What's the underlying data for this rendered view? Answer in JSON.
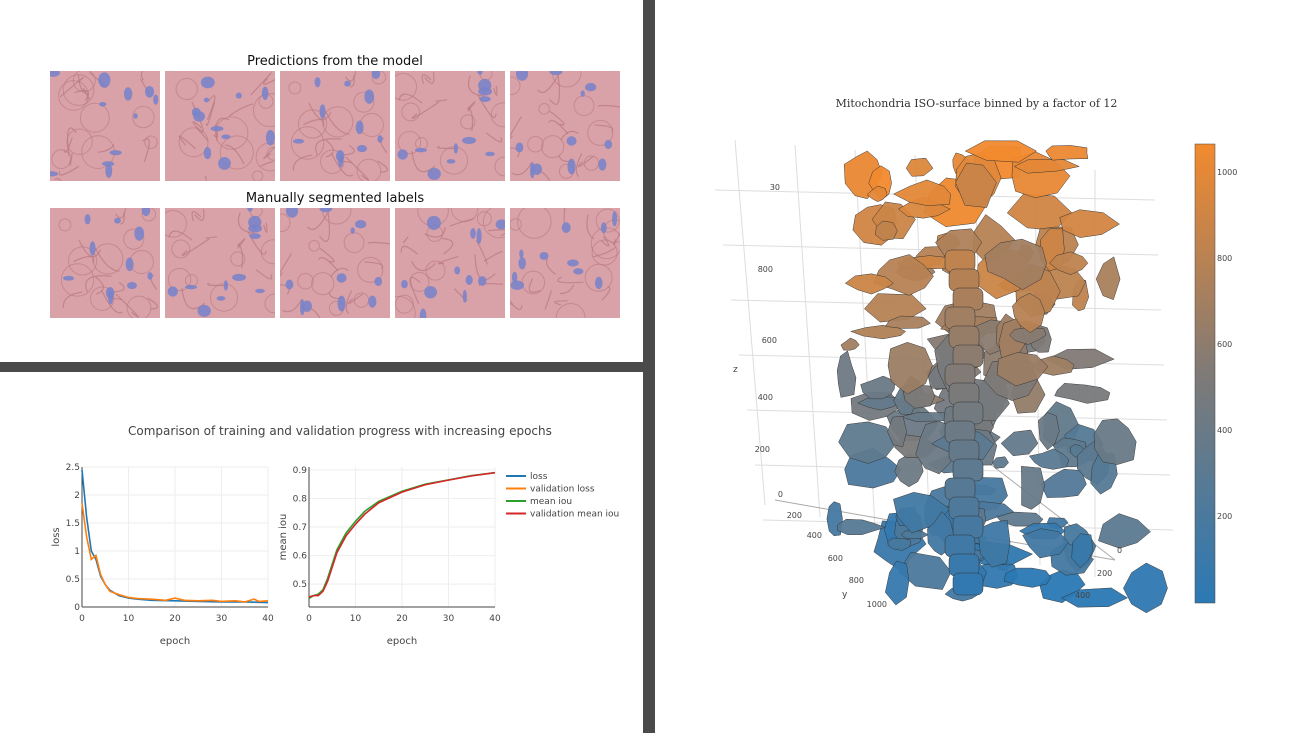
{
  "segmentation": {
    "pred_title": "Predictions from the model",
    "label_title": "Manually segmented labels",
    "tiles_per_row": 5,
    "colors": {
      "membrane": "#d9a2a8",
      "membrane_dark": "#b7787f",
      "mitochondria": "#7a83c8"
    }
  },
  "training": {
    "title": "Comparison of training and validation progress with increasing epochs",
    "loss_plot": {
      "ylabel": "loss",
      "xlabel": "epoch",
      "xticks": [
        "0",
        "10",
        "20",
        "30",
        "40"
      ],
      "yticks": [
        "0",
        "0.5",
        "1",
        "1.5",
        "2",
        "2.5"
      ]
    },
    "iou_plot": {
      "ylabel": "mean iou",
      "xlabel": "epoch",
      "xticks": [
        "0",
        "10",
        "20",
        "30",
        "40"
      ],
      "yticks": [
        "0.5",
        "0.6",
        "0.7",
        "0.8",
        "0.9"
      ]
    },
    "legend": [
      {
        "label": "loss",
        "color": "#1f77b4"
      },
      {
        "label": "validation loss",
        "color": "#ff7f0e"
      },
      {
        "label": "mean iou",
        "color": "#2ca02c"
      },
      {
        "label": "validation mean iou",
        "color": "#d62728"
      }
    ]
  },
  "chart_data": [
    {
      "type": "line",
      "xlabel": "epoch",
      "ylabel": "loss",
      "xlim": [
        0,
        40
      ],
      "ylim": [
        0,
        2.5
      ],
      "series": [
        {
          "name": "loss",
          "color": "#1f77b4",
          "x": [
            0,
            1,
            2,
            3,
            4,
            5,
            6,
            8,
            10,
            12,
            15,
            20,
            25,
            30,
            35,
            40
          ],
          "y": [
            2.45,
            1.6,
            1.0,
            0.85,
            0.55,
            0.4,
            0.3,
            0.2,
            0.16,
            0.14,
            0.12,
            0.11,
            0.1,
            0.09,
            0.09,
            0.08
          ]
        },
        {
          "name": "validation loss",
          "color": "#ff7f0e",
          "x": [
            0,
            1,
            2,
            3,
            4,
            5,
            6,
            8,
            10,
            12,
            15,
            18,
            20,
            22,
            25,
            28,
            30,
            33,
            35,
            37,
            38,
            40
          ],
          "y": [
            1.85,
            1.25,
            0.85,
            0.92,
            0.58,
            0.4,
            0.28,
            0.22,
            0.17,
            0.15,
            0.14,
            0.12,
            0.16,
            0.12,
            0.11,
            0.12,
            0.1,
            0.11,
            0.09,
            0.14,
            0.1,
            0.11
          ]
        }
      ]
    },
    {
      "type": "line",
      "xlabel": "epoch",
      "ylabel": "mean iou",
      "xlim": [
        0,
        40
      ],
      "ylim": [
        0.42,
        0.91
      ],
      "series": [
        {
          "name": "mean iou",
          "color": "#2ca02c",
          "x": [
            0,
            1,
            2,
            3,
            4,
            5,
            6,
            8,
            10,
            12,
            15,
            20,
            25,
            30,
            35,
            40
          ],
          "y": [
            0.45,
            0.46,
            0.465,
            0.48,
            0.52,
            0.57,
            0.62,
            0.68,
            0.72,
            0.755,
            0.79,
            0.825,
            0.85,
            0.865,
            0.88,
            0.89
          ]
        },
        {
          "name": "validation mean iou",
          "color": "#d62728",
          "x": [
            0,
            1,
            2,
            3,
            4,
            5,
            6,
            8,
            10,
            12,
            15,
            20,
            25,
            30,
            35,
            40
          ],
          "y": [
            0.455,
            0.46,
            0.46,
            0.475,
            0.51,
            0.56,
            0.61,
            0.67,
            0.71,
            0.745,
            0.785,
            0.822,
            0.848,
            0.864,
            0.879,
            0.89
          ]
        }
      ]
    }
  ],
  "isosurface": {
    "title": "Mitochondria ISO-surface binned by a factor of 12",
    "z_axis_label": "z",
    "y_axis_label": "y",
    "z_ticks": [
      "200",
      "400",
      "600",
      "800",
      "30"
    ],
    "y_ticks": [
      "0",
      "200",
      "400",
      "600",
      "800",
      "1000"
    ],
    "x_ticks": [
      "0",
      "200",
      "400"
    ],
    "colorbar_ticks": [
      "200",
      "400",
      "600",
      "800",
      "1000"
    ],
    "colorbar_colors": {
      "low": "#2b79b5",
      "mid": "#7f7a77",
      "high": "#f28a2e"
    }
  }
}
